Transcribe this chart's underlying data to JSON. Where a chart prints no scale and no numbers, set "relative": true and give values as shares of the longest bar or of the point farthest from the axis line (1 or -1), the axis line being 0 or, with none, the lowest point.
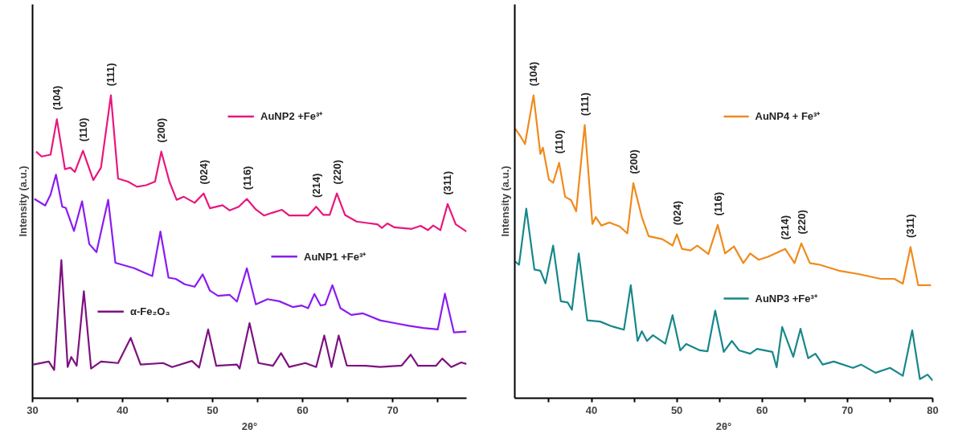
{
  "chart_data": [
    {
      "type": "line",
      "legend": "center",
      "relative": true,
      "xlabel": "2θ°",
      "ylabel": "Intensity (a.u.)",
      "xlim": [
        30,
        78.2
      ],
      "xticks": [
        30,
        {
          "value": 35,
          "label": null
        },
        40,
        {
          "value": 45,
          "label": null
        },
        50,
        {
          "value": 55,
          "label": null
        },
        60,
        {
          "value": 65,
          "label": null
        },
        70,
        {
          "value": 75,
          "label": null
        }
      ],
      "series": [
        {
          "name": "AuNP2 +Fe³⁺",
          "color": "#e8177d",
          "x": [
            30.4,
            31.0,
            32.0,
            32.7,
            33.6,
            34.2,
            34.7,
            35.6,
            36.75,
            37.6,
            38.7,
            39.5,
            40.6,
            41.6,
            42.6,
            43.6,
            44.3,
            45.2,
            46.0,
            46.8,
            48.0,
            49.0,
            49.7,
            51.1,
            51.9,
            52.9,
            53.8,
            54.8,
            55.7,
            56.6,
            57.7,
            58.5,
            60.6,
            61.5,
            62.3,
            63.0,
            63.8,
            64.7,
            66.0,
            67.0,
            68.3,
            68.8,
            69.4,
            70.2,
            72.1,
            73.1,
            73.9,
            74.5,
            75.3,
            76.1,
            77.0,
            78.2
          ],
          "values": [
            0.814,
            0.798,
            0.804,
            0.921,
            0.756,
            0.761,
            0.747,
            0.817,
            0.72,
            0.761,
            1.0,
            0.725,
            0.715,
            0.698,
            0.703,
            0.715,
            0.814,
            0.715,
            0.655,
            0.665,
            0.645,
            0.676,
            0.627,
            0.637,
            0.62,
            0.632,
            0.658,
            0.623,
            0.603,
            0.612,
            0.622,
            0.603,
            0.603,
            0.632,
            0.605,
            0.605,
            0.676,
            0.605,
            0.583,
            0.579,
            0.574,
            0.562,
            0.577,
            0.564,
            0.559,
            0.569,
            0.555,
            0.57,
            0.555,
            0.641,
            0.574,
            0.55
          ]
        },
        {
          "name": "AuNP1 +Fe³⁺",
          "color": "#8a1cf0",
          "x": [
            30.2,
            31.4,
            32.0,
            32.6,
            33.3,
            33.7,
            34.6,
            35.5,
            36.3,
            37.1,
            38.4,
            39.2,
            41.3,
            42.3,
            43.3,
            44.2,
            45.1,
            45.9,
            46.9,
            48.0,
            48.9,
            49.7,
            50.6,
            51.9,
            52.7,
            53.8,
            54.8,
            56.1,
            57.4,
            58.9,
            59.9,
            60.6,
            61.3,
            62.0,
            62.5,
            63.3,
            64.2,
            65.4,
            66.7,
            68.6,
            70.2,
            71.8,
            73.4,
            75.0,
            75.8,
            76.8,
            78.2
          ],
          "values": [
            0.658,
            0.636,
            0.672,
            0.738,
            0.632,
            0.628,
            0.552,
            0.65,
            0.509,
            0.482,
            0.655,
            0.447,
            0.429,
            0.416,
            0.403,
            0.55,
            0.398,
            0.394,
            0.376,
            0.368,
            0.409,
            0.355,
            0.338,
            0.341,
            0.319,
            0.429,
            0.31,
            0.327,
            0.32,
            0.301,
            0.306,
            0.297,
            0.344,
            0.306,
            0.309,
            0.373,
            0.297,
            0.275,
            0.28,
            0.257,
            0.248,
            0.239,
            0.232,
            0.227,
            0.345,
            0.217,
            0.22
          ]
        },
        {
          "name": "α-Fe₂O₃",
          "color": "#7d1280",
          "x": [
            30.1,
            31.8,
            32.4,
            33.2,
            33.9,
            34.3,
            34.9,
            35.7,
            36.5,
            37.6,
            39.5,
            40.9,
            42.0,
            44.5,
            45.5,
            47.7,
            48.5,
            49.5,
            50.4,
            52.7,
            53.0,
            54.1,
            55.1,
            56.7,
            57.6,
            58.5,
            60.3,
            61.5,
            62.4,
            63.2,
            64.0,
            64.9,
            67.0,
            68.6,
            71.0,
            72.0,
            72.8,
            74.8,
            75.5,
            76.5,
            77.6,
            78.2
          ],
          "values": [
            0.111,
            0.121,
            0.093,
            0.456,
            0.103,
            0.136,
            0.107,
            0.353,
            0.098,
            0.121,
            0.116,
            0.199,
            0.111,
            0.116,
            0.103,
            0.123,
            0.101,
            0.227,
            0.107,
            0.111,
            0.098,
            0.248,
            0.116,
            0.107,
            0.149,
            0.103,
            0.116,
            0.103,
            0.207,
            0.103,
            0.207,
            0.108,
            0.107,
            0.103,
            0.108,
            0.144,
            0.107,
            0.107,
            0.131,
            0.103,
            0.118,
            0.113
          ]
        }
      ],
      "annotations": [
        {
          "text": "(104)",
          "x": 32.7,
          "y": 0.921
        },
        {
          "text": "(110)",
          "x": 35.6,
          "y": 0.817
        },
        {
          "text": "(111)",
          "x": 38.7,
          "y": 1.0
        },
        {
          "text": "(200)",
          "x": 44.3,
          "y": 0.814
        },
        {
          "text": "(024)",
          "x": 49.0,
          "y": 0.676
        },
        {
          "text": "(116)",
          "x": 53.8,
          "y": 0.658
        },
        {
          "text": "(214)",
          "x": 61.5,
          "y": 0.632
        },
        {
          "text": "(220)",
          "x": 63.8,
          "y": 0.676
        },
        {
          "text": "(311)",
          "x": 76.1,
          "y": 0.641
        }
      ]
    },
    {
      "type": "line",
      "legend": "right",
      "relative": true,
      "xlabel": "2θ°",
      "ylabel": "Intensity (a.u.)",
      "xlim": [
        31,
        80
      ],
      "xticks": [
        {
          "value": 35,
          "label": null
        },
        40,
        {
          "value": 45,
          "label": null
        },
        50,
        {
          "value": 55,
          "label": null
        },
        60,
        {
          "value": 65,
          "label": null
        },
        70,
        {
          "value": 75,
          "label": null
        },
        80
      ],
      "series": [
        {
          "name": "AuNP4 + Fe³⁺",
          "color": "#f08a1c",
          "x": [
            31.05,
            31.7,
            32.2,
            33.2,
            34.0,
            34.3,
            35.0,
            35.5,
            36.2,
            36.9,
            37.6,
            38.2,
            39.2,
            40.1,
            40.5,
            41.15,
            42.1,
            43.3,
            44.2,
            44.9,
            45.9,
            46.7,
            48.3,
            49.5,
            50.0,
            50.6,
            51.6,
            52.4,
            53.7,
            54.8,
            55.65,
            56.7,
            57.8,
            58.6,
            59.6,
            60.7,
            62.7,
            63.8,
            64.6,
            65.6,
            66.7,
            69.0,
            71.3,
            73.9,
            75.5,
            76.5,
            77.4,
            78.3,
            79.8
          ],
          "values": [
            0.89,
            0.863,
            0.839,
            1.0,
            0.806,
            0.827,
            0.722,
            0.711,
            0.777,
            0.665,
            0.654,
            0.617,
            0.902,
            0.575,
            0.598,
            0.57,
            0.58,
            0.567,
            0.544,
            0.71,
            0.598,
            0.535,
            0.525,
            0.504,
            0.541,
            0.493,
            0.488,
            0.504,
            0.476,
            0.572,
            0.478,
            0.501,
            0.446,
            0.478,
            0.457,
            0.467,
            0.493,
            0.446,
            0.511,
            0.446,
            0.441,
            0.421,
            0.41,
            0.394,
            0.394,
            0.378,
            0.499,
            0.373,
            0.373
          ]
        },
        {
          "name": "AuNP3 +Fe³⁺",
          "color": "#17878a",
          "x": [
            31.05,
            31.5,
            32.35,
            33.3,
            34.0,
            34.6,
            35.5,
            36.4,
            37.2,
            37.7,
            38.5,
            39.5,
            41.0,
            42.3,
            43.8,
            44.6,
            45.4,
            45.9,
            46.5,
            47.2,
            48.65,
            49.5,
            50.4,
            51.1,
            52.7,
            53.6,
            54.5,
            55.5,
            56.45,
            57.3,
            58.6,
            59.4,
            61.2,
            61.7,
            62.35,
            63.65,
            64.5,
            65.4,
            66.25,
            67.1,
            68.4,
            70.65,
            71.6,
            73.3,
            75.0,
            76.5,
            77.6,
            78.5,
            79.4,
            80.0
          ],
          "values": [
            0.451,
            0.441,
            0.626,
            0.425,
            0.421,
            0.379,
            0.504,
            0.32,
            0.316,
            0.292,
            0.478,
            0.257,
            0.253,
            0.238,
            0.226,
            0.373,
            0.189,
            0.221,
            0.189,
            0.208,
            0.18,
            0.274,
            0.158,
            0.179,
            0.158,
            0.155,
            0.289,
            0.153,
            0.189,
            0.158,
            0.147,
            0.163,
            0.153,
            0.102,
            0.235,
            0.137,
            0.229,
            0.132,
            0.147,
            0.111,
            0.121,
            0.1,
            0.111,
            0.084,
            0.1,
            0.074,
            0.224,
            0.063,
            0.078,
            0.058
          ]
        }
      ],
      "annotations": [
        {
          "text": "(104)",
          "x": 33.2,
          "y": 1.0
        },
        {
          "text": "(110)",
          "x": 36.2,
          "y": 0.777
        },
        {
          "text": "(111)",
          "x": 39.2,
          "y": 0.902
        },
        {
          "text": "(200)",
          "x": 44.9,
          "y": 0.71
        },
        {
          "text": "(024)",
          "x": 50.0,
          "y": 0.541
        },
        {
          "text": "(116)",
          "x": 54.8,
          "y": 0.572
        },
        {
          "text": "(214)",
          "x": 62.7,
          "y": 0.493
        },
        {
          "text": "(220)",
          "x": 64.6,
          "y": 0.511
        },
        {
          "text": "(311)",
          "x": 77.4,
          "y": 0.499
        }
      ]
    }
  ]
}
